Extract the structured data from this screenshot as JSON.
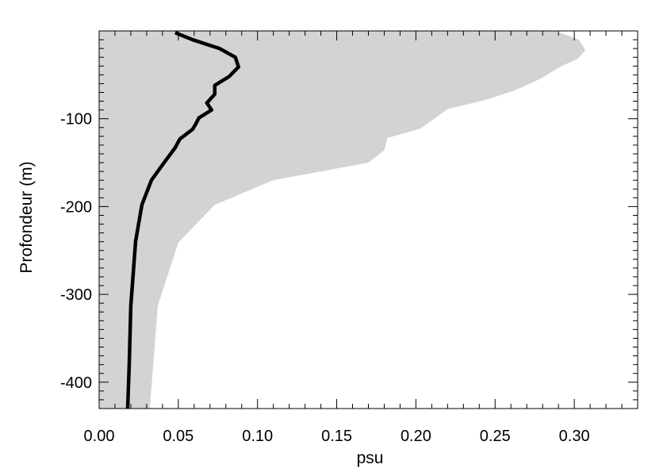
{
  "chart_data": {
    "type": "area",
    "xlabel": "psu",
    "ylabel": "Profondeur (m)",
    "xlim": [
      0,
      0.34
    ],
    "ylim": [
      -430,
      0
    ],
    "xticks": [
      0.0,
      0.05,
      0.1,
      0.15,
      0.2,
      0.25,
      0.3
    ],
    "xtick_labels": [
      "0.00",
      "0.05",
      "0.10",
      "0.15",
      "0.20",
      "0.25",
      "0.30"
    ],
    "yticks": [
      -100,
      -200,
      -300,
      -400
    ],
    "ytick_labels": [
      "-100",
      "-200",
      "-300",
      "-400"
    ],
    "grid": false,
    "colors": {
      "band": "#d3d3d3",
      "line": "#000000",
      "axis": "#000000"
    },
    "envelope": {
      "x": [
        0.288,
        0.303,
        0.307,
        0.302,
        0.292,
        0.278,
        0.262,
        0.243,
        0.22,
        0.203,
        0.182,
        0.18,
        0.17,
        0.11,
        0.073,
        0.05,
        0.037,
        0.032
      ],
      "y": [
        0,
        -10,
        -22,
        -32,
        -40,
        -55,
        -68,
        -79,
        -89,
        -111,
        -122,
        -136,
        -150,
        -170,
        -198,
        -241,
        -313,
        -430
      ]
    },
    "mean_profile": {
      "x": [
        0.048,
        0.059,
        0.076,
        0.086,
        0.088,
        0.082,
        0.073,
        0.073,
        0.068,
        0.071,
        0.063,
        0.061,
        0.059,
        0.051,
        0.048,
        0.041,
        0.033,
        0.027,
        0.023,
        0.02,
        0.019,
        0.018
      ],
      "y": [
        -2,
        -10,
        -20,
        -30,
        -41,
        -52,
        -62,
        -72,
        -82,
        -90,
        -99,
        -106,
        -112,
        -123,
        -133,
        -150,
        -170,
        -198,
        -240,
        -313,
        -380,
        -430
      ]
    }
  }
}
